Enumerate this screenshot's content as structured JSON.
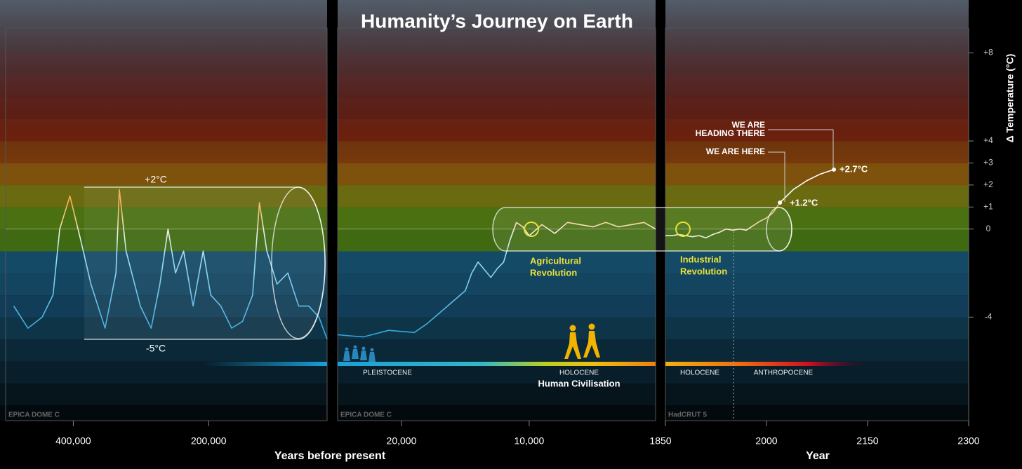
{
  "title": "Humanity’s Journey on Earth",
  "chart_data": [
    {
      "type": "line",
      "source": "EPICA DOME C",
      "xlabel": "Years before present",
      "cylinder_labels": [
        "+2°C",
        "-5°C"
      ],
      "x": [
        488000,
        467000,
        446000,
        430000,
        420000,
        405000,
        389000,
        374000,
        353000,
        337000,
        332000,
        322000,
        301000,
        285000,
        272000,
        260000,
        249000,
        237000,
        223000,
        208000,
        197000,
        182000,
        166000,
        150000,
        135000,
        125000,
        114000,
        99000,
        83000,
        67000,
        52000,
        37000,
        25000
      ],
      "values": [
        -3.5,
        -4.5,
        -4,
        -3,
        0,
        1.5,
        -0.5,
        -2.5,
        -4.5,
        -2,
        1.8,
        -1,
        -3.5,
        -4.5,
        -2.5,
        0,
        -2,
        -1,
        -3.5,
        -1,
        -3,
        -3.5,
        -4.5,
        -4.2,
        -3,
        1.2,
        -1,
        -2.5,
        -2,
        -3.5,
        -3.5,
        -4,
        -5
      ],
      "xlim": [
        500000,
        25000
      ],
      "ylim": [
        -8.7,
        10.4
      ],
      "xticks": [
        {
          "value": 400000,
          "label": "400,000"
        },
        {
          "value": 200000,
          "label": "200,000"
        }
      ]
    },
    {
      "type": "line",
      "source": "EPICA DOME C",
      "event": [
        "Agricultural",
        "Revolution"
      ],
      "epochs": [
        "PLEISTOCENE",
        "HOLOCENE"
      ],
      "era": "Human Civilisation",
      "x": [
        25000,
        23000,
        21000,
        19000,
        18000,
        17000,
        16000,
        15000,
        14500,
        14000,
        13000,
        12500,
        12000,
        11500,
        11000,
        10500,
        10000,
        9000,
        8000,
        7000,
        6000,
        5000,
        4000,
        3000,
        2000,
        1000,
        100
      ],
      "values": [
        -4.8,
        -4.9,
        -4.6,
        -4.7,
        -4.3,
        -3.8,
        -3.3,
        -2.8,
        -2,
        -1.5,
        -2.2,
        -1.8,
        -1.5,
        -0.5,
        0.3,
        0.1,
        -0.3,
        0.2,
        -0.2,
        0.3,
        0.2,
        0.1,
        0.3,
        0.1,
        0.2,
        0.3,
        0
      ],
      "xlim": [
        25000,
        100
      ],
      "ylim": [
        -8.7,
        10.4
      ],
      "xticks": [
        {
          "value": 20000,
          "label": "20,000"
        },
        {
          "value": 10000,
          "label": "10,000"
        }
      ]
    },
    {
      "type": "line",
      "source": "HadCRUT 5",
      "xlabel": "Year",
      "event": [
        "Industrial",
        "Revolution"
      ],
      "epochs": [
        "HOLOCENE",
        "ANTHROPOCENE"
      ],
      "here": "WE ARE HERE",
      "here_label": "+1.2°C",
      "there": [
        "WE ARE",
        "HEADING THERE"
      ],
      "there_label": "+2.7°C",
      "x": [
        1850,
        1860,
        1870,
        1880,
        1890,
        1900,
        1910,
        1920,
        1930,
        1940,
        1950,
        1960,
        1970,
        1980,
        1990,
        2000,
        2010,
        2020
      ],
      "values": [
        -0.3,
        -0.3,
        -0.25,
        -0.3,
        -0.35,
        -0.3,
        -0.4,
        -0.25,
        -0.15,
        0,
        -0.05,
        0,
        -0.05,
        0.15,
        0.35,
        0.5,
        0.75,
        1.2
      ],
      "projection": {
        "x": [
          2020,
          2040,
          2060,
          2080,
          2100
        ],
        "values": [
          1.2,
          1.8,
          2.2,
          2.5,
          2.7
        ]
      },
      "xlim": [
        1850,
        2300
      ],
      "xticks": [
        1850,
        2000,
        2150,
        2300
      ],
      "ylabel": "Δ Temperature (°C)",
      "ylim": [
        -8.7,
        10.4
      ],
      "yticks": [
        {
          "value": 8,
          "label": "+8"
        },
        {
          "value": 4,
          "label": "+4"
        },
        {
          "value": 3,
          "label": "+3"
        },
        {
          "value": 2,
          "label": "+2"
        },
        {
          "value": 1,
          "label": "+1"
        },
        0,
        -4
      ]
    }
  ]
}
